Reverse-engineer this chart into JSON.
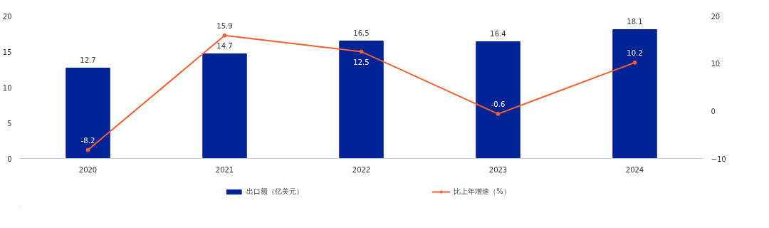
{
  "chart_data": {
    "type": "bar",
    "categories": [
      "2020",
      "2021",
      "2022",
      "2023",
      "2024"
    ],
    "series": [
      {
        "name": "出口额（亿美元）",
        "color": "#002395",
        "values": [
          12.7,
          14.7,
          16.5,
          16.4,
          18.1
        ]
      },
      {
        "name": "比上年增速（%）",
        "type": "line",
        "axis": "y2",
        "color": "#f4602e",
        "marker": "circle",
        "values": [
          -8.2,
          15.9,
          12.5,
          -0.6,
          10.2
        ]
      }
    ],
    "ylim": [
      0,
      20
    ],
    "yticks": [
      0,
      5,
      10,
      15,
      20
    ],
    "y2lim": [
      -10,
      20
    ],
    "y2ticks": [
      -10,
      0,
      10,
      20
    ],
    "data_labels": true,
    "grid": false,
    "legend": "bottom"
  }
}
